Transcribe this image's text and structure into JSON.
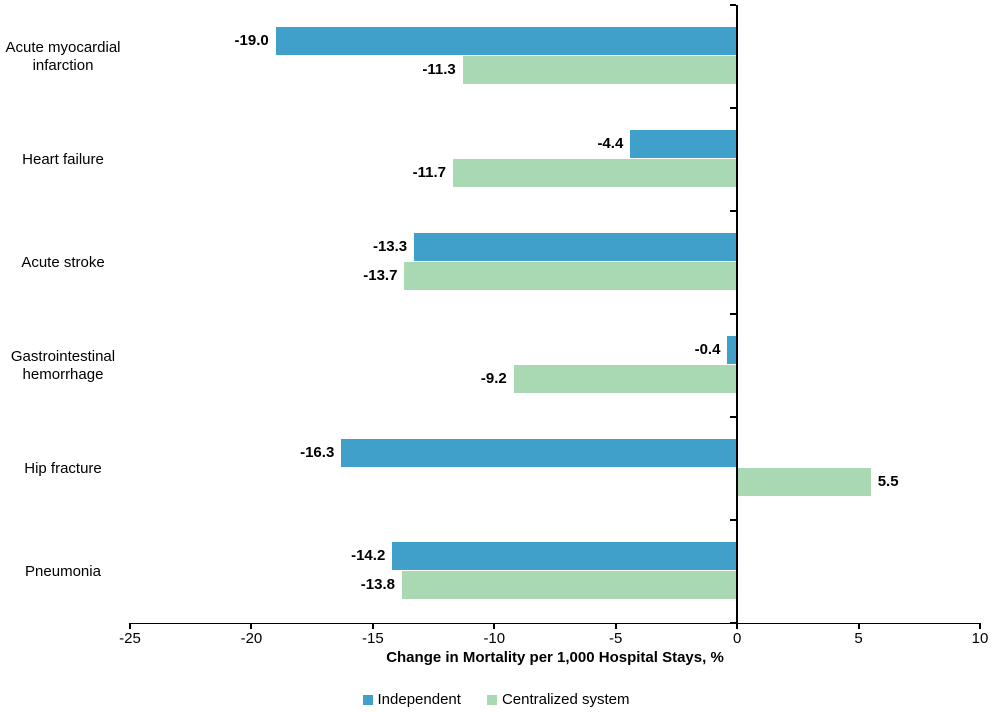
{
  "chart_data": {
    "type": "bar",
    "orientation": "horizontal",
    "title": "",
    "categories": [
      "Acute myocardial infarction",
      "Heart failure",
      "Acute stroke",
      "Gastrointestinal hemorrhage",
      "Hip fracture",
      "Pneumonia"
    ],
    "series": [
      {
        "name": "Independent",
        "color": "#41A0C9",
        "values": [
          -19.0,
          -4.4,
          -13.3,
          -0.4,
          -16.3,
          -14.2
        ],
        "labels": [
          "-19.0",
          "-4.4",
          "-13.3",
          "-0.4",
          "-16.3",
          "-14.2"
        ]
      },
      {
        "name": "Centralized system",
        "color": "#A9D9B2",
        "values": [
          -11.3,
          -11.7,
          -13.7,
          -9.2,
          5.5,
          -13.8
        ],
        "labels": [
          "-11.3",
          "-11.7",
          "-13.7",
          "-9.2",
          "5.5",
          "-13.8"
        ]
      }
    ],
    "xlabel": "Change in Mortality per 1,000 Hospital Stays, %",
    "xlim": [
      -25,
      10
    ],
    "xticks": [
      -25,
      -20,
      -15,
      -10,
      -5,
      0,
      5,
      10
    ],
    "xtick_labels": [
      "-25",
      "-20",
      "-15",
      "-10",
      "-5",
      "0",
      "5",
      "10"
    ],
    "grid": false,
    "legend_position": "bottom",
    "axis_color": "#000000",
    "text_color": "#000000"
  }
}
